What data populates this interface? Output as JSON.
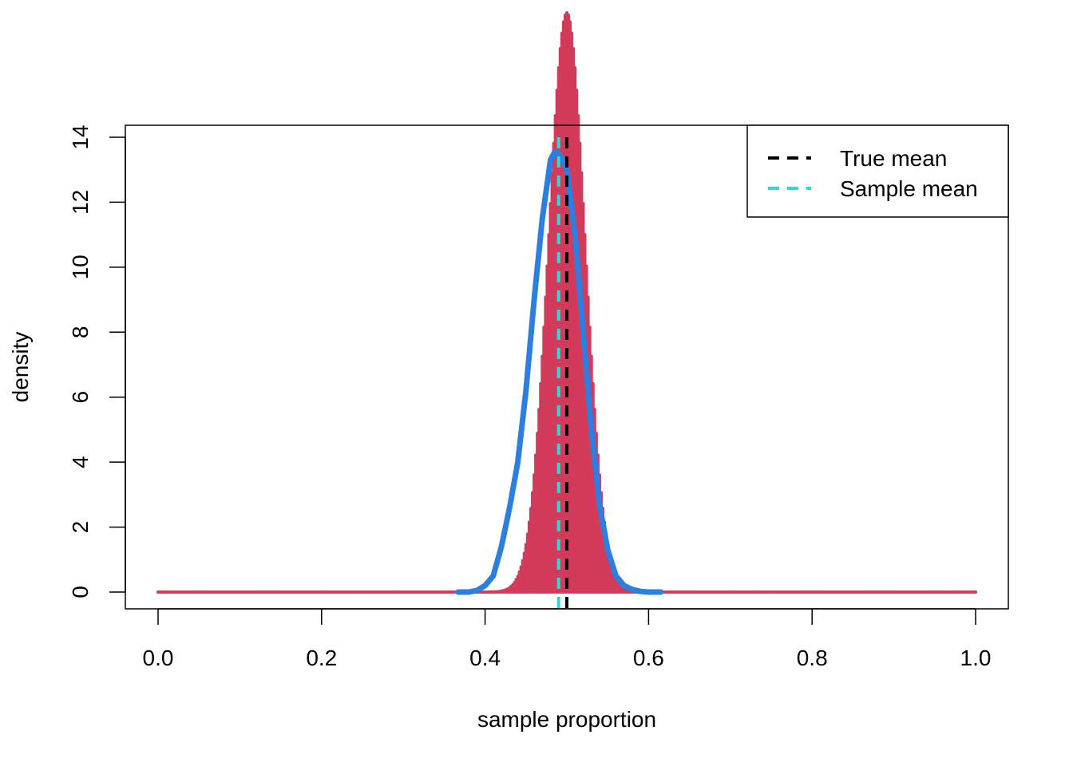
{
  "chart_data": {
    "type": "bar",
    "title": "",
    "xlabel": "sample proportion",
    "ylabel": "density",
    "xlim": [
      0.0,
      1.0
    ],
    "ylim": [
      0,
      14
    ],
    "x_ticks": [
      "0.0",
      "0.2",
      "0.4",
      "0.6",
      "0.8",
      "1.0"
    ],
    "y_ticks": [
      "0",
      "2",
      "4",
      "6",
      "8",
      "10",
      "12",
      "14"
    ],
    "grid": false,
    "legend_position": "top-right",
    "legend": [
      {
        "label": "True mean",
        "color": "#000000",
        "style": "dashed"
      },
      {
        "label": "Sample mean",
        "color": "#2ED8DF",
        "style": "dashed"
      }
    ],
    "series": [
      {
        "type": "binomial-probability-spikes",
        "color": "#D33B5A",
        "n": 500,
        "p": 0.5,
        "x_min": 0.0,
        "x_max": 1.0
      },
      {
        "name": "density estimate",
        "type": "line",
        "color": "#2A7FE0",
        "x": [
          0.367,
          0.38,
          0.39,
          0.4,
          0.41,
          0.42,
          0.43,
          0.44,
          0.45,
          0.46,
          0.47,
          0.48,
          0.485,
          0.49,
          0.495,
          0.5,
          0.51,
          0.52,
          0.53,
          0.54,
          0.55,
          0.56,
          0.57,
          0.58,
          0.59,
          0.6,
          0.615
        ],
        "y": [
          0.0,
          0.0,
          0.05,
          0.2,
          0.5,
          1.4,
          2.6,
          4.0,
          6.2,
          9.0,
          11.5,
          13.3,
          13.55,
          13.5,
          13.3,
          13.0,
          11.0,
          8.0,
          5.0,
          2.7,
          1.3,
          0.5,
          0.2,
          0.08,
          0.02,
          0.0,
          0.0
        ]
      }
    ],
    "vlines": [
      {
        "name": "True mean",
        "x": 0.5,
        "color": "#000000",
        "style": "dashed"
      },
      {
        "name": "Sample mean",
        "x": 0.49,
        "color": "#2ED8DF",
        "style": "dashed"
      }
    ]
  }
}
